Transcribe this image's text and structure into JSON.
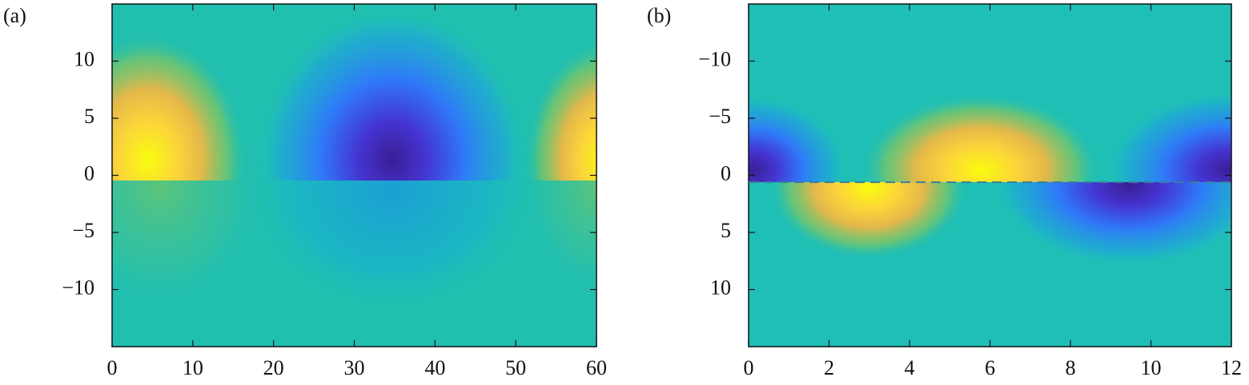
{
  "chart_data": [
    {
      "type": "heatmap",
      "panel_label": "(a)",
      "xlim": [
        0,
        60
      ],
      "xticks": [
        0,
        10,
        20,
        30,
        40,
        50,
        60
      ],
      "ylim": [
        -15,
        15
      ],
      "y_reversed": false,
      "yticks": [
        {
          "value": -10,
          "label": "−10"
        },
        {
          "value": -5,
          "label": "−5"
        },
        0,
        5,
        10
      ]
    },
    {
      "type": "heatmap",
      "panel_label": "(b)",
      "xlim": [
        0,
        12
      ],
      "xticks": [
        0,
        2,
        4,
        6,
        8,
        10,
        12
      ],
      "ylim": [
        -15,
        15
      ],
      "y_reversed": true,
      "yticks": [
        {
          "value": -10,
          "label": "−10"
        },
        {
          "value": -5,
          "label": "−5"
        },
        0,
        5,
        10
      ],
      "reference_line": {
        "y": 0.6,
        "style": "dashed",
        "color": "#3a7f9a"
      }
    }
  ]
}
